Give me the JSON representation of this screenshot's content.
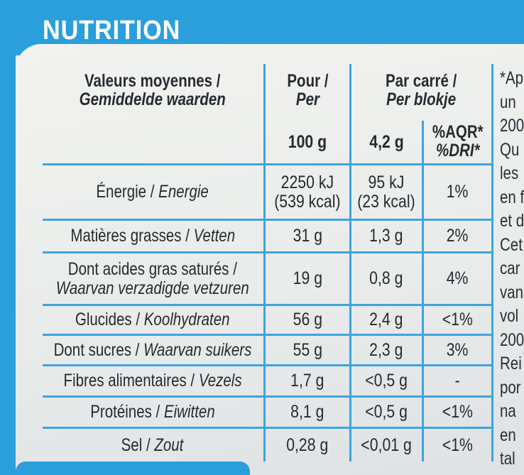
{
  "title": "NUTRITION",
  "header": {
    "col1_fr": "Valeurs moyennes /",
    "col1_nl": "Gemiddelde waarden",
    "col2_fr": "Pour /",
    "col2_nl": "Per",
    "col3_fr": "Par carré /",
    "col3_nl": "Per blokje",
    "qty_100": "100 g",
    "qty_square": "4,2 g",
    "aqr": "%AQR*",
    "dri": "%DRI*"
  },
  "rows": [
    {
      "fr": "Énergie / ",
      "nl": "Energie",
      "fr2": "",
      "nl2": "",
      "per100": "2250 kJ",
      "per100b": "(539 kcal)",
      "square": "95 kJ",
      "squareb": "(23 kcal)",
      "pct": "1%"
    },
    {
      "fr": "Matières grasses / ",
      "nl": "Vetten",
      "fr2": "",
      "nl2": "",
      "per100": "31 g",
      "per100b": "",
      "square": "1,3 g",
      "squareb": "",
      "pct": "2%"
    },
    {
      "fr": "Dont acides gras saturés /",
      "nl": "",
      "fr2": "",
      "nl2": "Waarvan verzadigde vetzuren",
      "per100": "19 g",
      "per100b": "",
      "square": "0,8 g",
      "squareb": "",
      "pct": "4%"
    },
    {
      "fr": "Glucides / ",
      "nl": "Koolhydraten",
      "fr2": "",
      "nl2": "",
      "per100": "56 g",
      "per100b": "",
      "square": "2,4 g",
      "squareb": "",
      "pct": "<1%"
    },
    {
      "fr": "Dont sucres / ",
      "nl": "Waarvan suikers",
      "fr2": "",
      "nl2": "",
      "per100": "55 g",
      "per100b": "",
      "square": "2,3 g",
      "squareb": "",
      "pct": "3%"
    },
    {
      "fr": "Fibres alimentaires / ",
      "nl": "Vezels",
      "fr2": "",
      "nl2": "",
      "per100": "1,7 g",
      "per100b": "",
      "square": "<0,5 g",
      "squareb": "",
      "pct": "-"
    },
    {
      "fr": "Protéines / ",
      "nl": "Eiwitten",
      "fr2": "",
      "nl2": "",
      "per100": "8,1 g",
      "per100b": "",
      "square": "<0,5 g",
      "squareb": "",
      "pct": "<1%"
    },
    {
      "fr": "Sel / ",
      "nl": "Zout",
      "fr2": "",
      "nl2": "",
      "per100": "0,28 g",
      "per100b": "",
      "square": "<0,01 g",
      "squareb": "",
      "pct": "<1%"
    }
  ],
  "side_text": [
    "*Ap",
    "un",
    "200",
    "Qu",
    "les",
    "en f",
    "et d",
    "Cet",
    "car",
    "van",
    "vol",
    "200",
    "Rei",
    "por",
    "na",
    "en",
    "tal"
  ],
  "colors": {
    "accent": "#2b9fdc",
    "text": "#262b31"
  }
}
